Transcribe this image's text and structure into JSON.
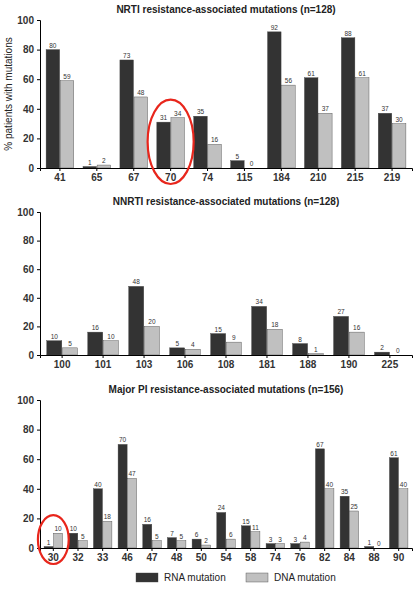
{
  "chart_data": [
    {
      "type": "bar",
      "title": "NRTI  resistance-associated mutations (n=128)",
      "ylabel": "% patients with mutations",
      "categories": [
        "41",
        "65",
        "67",
        "70",
        "74",
        "115",
        "184",
        "210",
        "215",
        "219"
      ],
      "series": [
        {
          "color": "#333333",
          "values": [
            80,
            1,
            73,
            31,
            35,
            5,
            92,
            61,
            88,
            37
          ]
        },
        {
          "color": "#c0c0c0",
          "values": [
            59,
            2,
            48,
            34,
            16,
            0,
            56,
            37,
            61,
            30
          ]
        }
      ],
      "ylim": [
        0,
        100
      ],
      "yticks": [
        0,
        20,
        40,
        60,
        80,
        100
      ],
      "grid": false,
      "data_labels": true,
      "annotations": [
        {
          "category": "70",
          "shape": "ellipse",
          "color": "#e8261c"
        }
      ]
    },
    {
      "type": "bar",
      "title": "NNRTI resistance-associated mutations (n=128)",
      "categories": [
        "100",
        "101",
        "103",
        "106",
        "108",
        "181",
        "188",
        "190",
        "225"
      ],
      "series": [
        {
          "color": "#333333",
          "values": [
            10,
            16,
            48,
            5,
            15,
            34,
            8,
            27,
            2
          ]
        },
        {
          "color": "#c0c0c0",
          "values": [
            5,
            10,
            20,
            4,
            9,
            18,
            1,
            16,
            0
          ]
        }
      ],
      "ylim": [
        0,
        100
      ],
      "yticks": [
        0,
        20,
        40,
        60,
        80,
        100
      ],
      "grid": false,
      "data_labels": true
    },
    {
      "type": "bar",
      "title": "Major PI resistance-associated mutations (n=156)",
      "categories": [
        "30",
        "32",
        "33",
        "46",
        "47",
        "48",
        "50",
        "54",
        "58",
        "74",
        "76",
        "82",
        "84",
        "88",
        "90"
      ],
      "series": [
        {
          "name": "RNA mutation",
          "color": "#333333",
          "values": [
            1,
            10,
            40,
            70,
            16,
            7,
            6,
            24,
            15,
            3,
            3,
            67,
            35,
            1,
            61
          ]
        },
        {
          "name": "DNA mutation",
          "color": "#c0c0c0",
          "values": [
            10,
            5,
            18,
            47,
            5,
            5,
            2,
            6,
            11,
            3,
            4,
            40,
            25,
            0,
            40
          ]
        }
      ],
      "ylim": [
        0,
        100
      ],
      "yticks": [
        0,
        20,
        40,
        60,
        80,
        100
      ],
      "grid": false,
      "data_labels": true,
      "legend": "bottom",
      "annotations": [
        {
          "category": "30",
          "shape": "ellipse",
          "color": "#e8261c"
        }
      ]
    }
  ]
}
